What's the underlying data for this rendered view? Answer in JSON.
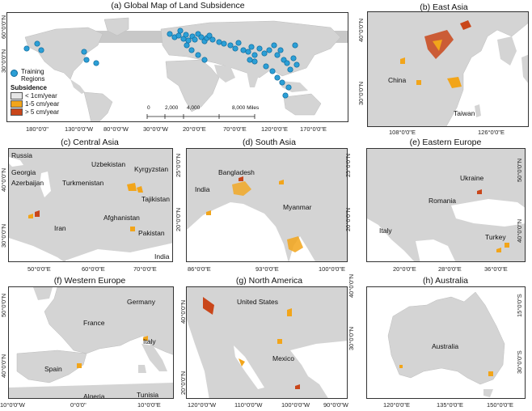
{
  "colors": {
    "land": "#d4d4d4",
    "ocean": "#ffffff",
    "low": "#e6e6e6",
    "mid": "#f2a51a",
    "high": "#c9461a",
    "point": "#2c9fd6",
    "point_stroke": "#0d6a9c",
    "no_data_band": "#c6c6c6"
  },
  "panels": {
    "a": {
      "title": "(a) Global Map of Land Subsidence",
      "x_ticks": [
        "180°0'0\"",
        "130°0'0\"W",
        "80°0'0\"W",
        "30°0'0\"W",
        "20°0'0\"E",
        "70°0'0\"E",
        "120°0'0\"E",
        "170°0'0\"E"
      ],
      "y_ticks": [
        "60°0'0\"N",
        "30°0'0\"N"
      ],
      "legend": {
        "points_label": "Training Regions",
        "subsidence_title": "Subsidence",
        "classes": [
          {
            "label": "< 1cm/year",
            "color": "#e6e6e6"
          },
          {
            "label": "1-5 cm/year",
            "color": "#f2a51a"
          },
          {
            "label": "> 5 cm/year",
            "color": "#c9461a"
          }
        ]
      },
      "scale_bar": {
        "labels": [
          "0",
          "2,000",
          "4,000",
          "8,000 Miles"
        ]
      }
    },
    "b": {
      "title": "(b) East Asia",
      "x_ticks": [
        "108°0'0\"E",
        "126°0'0\"E"
      ],
      "y_ticks": [
        "40°0'0\"N",
        "30°0'0\"N"
      ],
      "places": [
        "China",
        "Taiwan"
      ]
    },
    "c": {
      "title": "(c) Central Asia",
      "x_ticks": [
        "50°0'0\"E",
        "60°0'0\"E",
        "70°0'0\"E"
      ],
      "y_ticks": [
        "40°0'0\"N",
        "30°0'0\"N"
      ],
      "places": [
        "Russia",
        "Georgia",
        "Azerbaijan",
        "Uzbekistan",
        "Kyrgyzstan",
        "Turkmenistan",
        "Tajikistan",
        "Iran",
        "Afghanistan",
        "Pakistan",
        "India"
      ]
    },
    "d": {
      "title": "(d) South Asia",
      "x_ticks": [
        "86°0'0\"E",
        "93°0'0\"E",
        "100°0'0\"E"
      ],
      "y_ticks": [
        "25°0'0\"N",
        "20°0'0\"N"
      ],
      "places": [
        "Bangladesh",
        "India",
        "Myanmar"
      ]
    },
    "e": {
      "title": "(e) Eastern Europe",
      "x_ticks": [
        "20°0'0\"E",
        "28°0'0\"E",
        "36°0'0\"E"
      ],
      "y_ticks": [
        "50°0'0\"N",
        "40°0'0\"N"
      ],
      "places": [
        "Ukraine",
        "Romania",
        "Italy",
        "Turkey"
      ]
    },
    "f": {
      "title": "(f) Western Europe",
      "x_ticks": [
        "10°0'0\"W",
        "0°0'0\"",
        "10°0'0\"E"
      ],
      "y_ticks": [
        "50°0'0\"N",
        "40°0'0\"N"
      ],
      "places": [
        "Germany",
        "France",
        "Italy",
        "Spain",
        "Algeria",
        "Tunisia"
      ]
    },
    "g": {
      "title": "(g) North America",
      "x_ticks": [
        "120°0'0\"W",
        "110°0'0\"W",
        "100°0'0\"W",
        "90°0'0\"W"
      ],
      "y_ticks": [
        "40°0'0\"N",
        "30°0'0\"N",
        "20°0'0\"N"
      ],
      "places": [
        "United States",
        "Mexico"
      ]
    },
    "h": {
      "title": "(h) Australia",
      "x_ticks": [
        "120°0'0\"E",
        "135°0'0\"E",
        "150°0'0\"E"
      ],
      "y_ticks": [
        "15°0'0\"S",
        "30°0'0\"S"
      ],
      "places": [
        "Australia"
      ]
    }
  }
}
